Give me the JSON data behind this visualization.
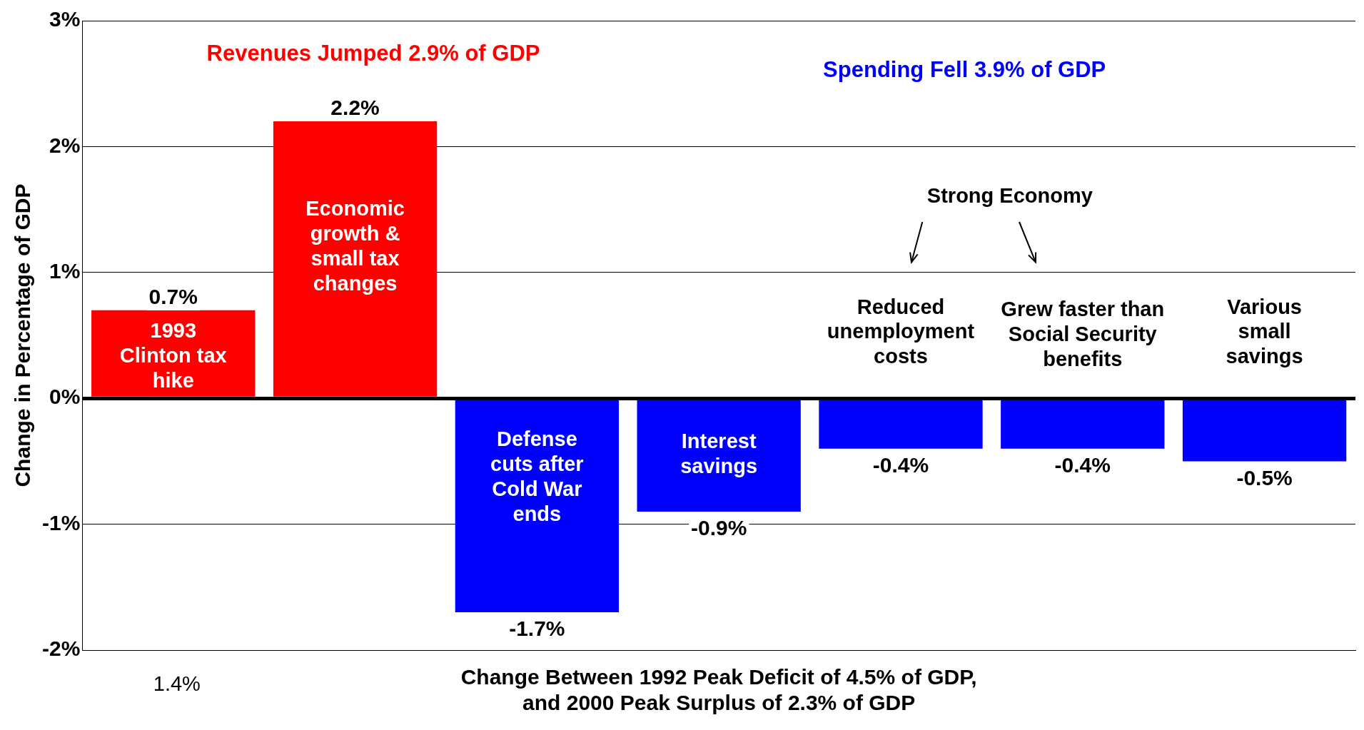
{
  "chart_data": {
    "type": "bar",
    "categories": [
      null,
      null,
      null,
      null,
      null,
      null,
      null
    ],
    "values": [
      0.7,
      2.2,
      -1.7,
      -0.9,
      -0.4,
      -0.4,
      -0.5
    ],
    "colors": [
      "#ff0000",
      "#ff0000",
      "#0000ff",
      "#0000ff",
      "#0000ff",
      "#0000ff",
      "#0000ff"
    ],
    "value_labels": [
      "0.7%",
      "2.2%",
      "-1.7%",
      "-0.9%",
      "-0.4%",
      "-0.4%",
      "-0.5%"
    ],
    "ylim": [
      -2,
      3
    ],
    "yticks": [
      {
        "value": -2,
        "label": "-2%"
      },
      {
        "value": -1,
        "label": "-1%"
      },
      {
        "value": 0,
        "label": "0%"
      },
      {
        "value": 1,
        "label": "1%"
      },
      {
        "value": 2,
        "label": "2%"
      },
      {
        "value": 3,
        "label": "3%"
      }
    ],
    "grid": "y",
    "ylabel": "Change in Percentage of GDP",
    "xlabel": "Change Between 1992 Peak Deficit of 4.5% of GDP,\nand 2000 Peak Surplus of 2.3% of GDP",
    "annotations": [
      "Revenues Jumped 2.9% of GDP",
      "Spending Fell 3.9% of GDP",
      "1993\nClinton tax\nhike",
      "Economic\ngrowth &\nsmall tax\nchanges",
      "Defense\ncuts after\nCold War\nends",
      "Interest\nsavings",
      "Reduced\nunemployment\ncosts",
      "Grew faster than\nSocial Security\nbenefits",
      "Various\nsmall\nsavings",
      "Strong Economy",
      "1.4%"
    ]
  }
}
